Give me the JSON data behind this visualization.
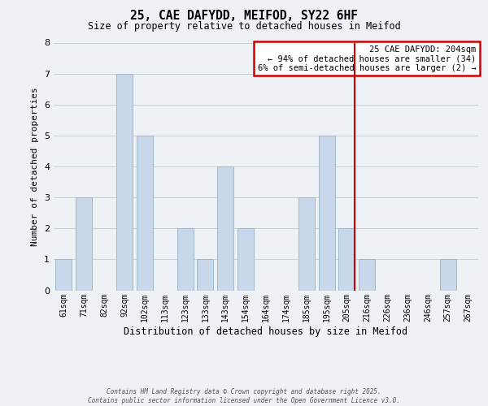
{
  "title": "25, CAE DAFYDD, MEIFOD, SY22 6HF",
  "subtitle": "Size of property relative to detached houses in Meifod",
  "xlabel": "Distribution of detached houses by size in Meifod",
  "ylabel": "Number of detached properties",
  "bar_labels": [
    "61sqm",
    "71sqm",
    "82sqm",
    "92sqm",
    "102sqm",
    "113sqm",
    "123sqm",
    "133sqm",
    "143sqm",
    "154sqm",
    "164sqm",
    "174sqm",
    "185sqm",
    "195sqm",
    "205sqm",
    "216sqm",
    "226sqm",
    "236sqm",
    "246sqm",
    "257sqm",
    "267sqm"
  ],
  "bar_values": [
    1,
    3,
    0,
    7,
    5,
    0,
    2,
    1,
    4,
    2,
    0,
    0,
    3,
    5,
    2,
    1,
    0,
    0,
    0,
    1,
    0
  ],
  "bar_color": "#c8d8ea",
  "bar_edge_color": "#a0b8cc",
  "grid_color": "#c8d0dc",
  "background_color": "#eef2f7",
  "vline_x_index": 14,
  "vline_color": "#cc0000",
  "ylim": [
    0,
    8
  ],
  "yticks": [
    0,
    1,
    2,
    3,
    4,
    5,
    6,
    7,
    8
  ],
  "annotation_title": "25 CAE DAFYDD: 204sqm",
  "annotation_line1": "← 94% of detached houses are smaller (34)",
  "annotation_line2": "6% of semi-detached houses are larger (2) →",
  "annotation_box_facecolor": "#ffffff",
  "annotation_box_edgecolor": "#cc0000",
  "footnote1": "Contains HM Land Registry data © Crown copyright and database right 2025.",
  "footnote2": "Contains public sector information licensed under the Open Government Licence v3.0."
}
